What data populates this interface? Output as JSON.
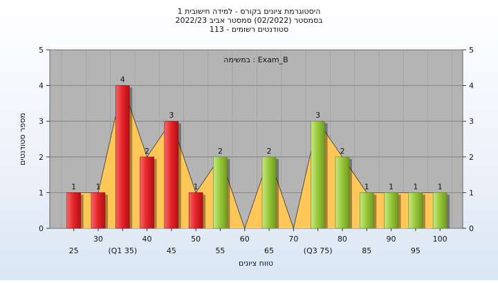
{
  "chart_data": {
    "type": "bar",
    "title_lines": [
      "היסטוגרמת ציונים בקורס - למידה חישובית 1",
      "בסמסטר  (02/2022)  סמסטר אביב 2022/23",
      "סטודנטים רשומים - 113"
    ],
    "annotation": "במשימה : Exam_B",
    "xlabel": "טווח ציונים",
    "ylabel": "מספר סטודנטים",
    "ylim": [
      0,
      5
    ],
    "yticks": [
      0,
      1,
      2,
      3,
      4,
      5
    ],
    "grid": true,
    "bins": [
      25,
      30,
      35,
      40,
      45,
      50,
      55,
      60,
      65,
      70,
      75,
      80,
      85,
      90,
      95,
      100
    ],
    "values": [
      1,
      1,
      4,
      2,
      3,
      1,
      2,
      0,
      2,
      0,
      3,
      2,
      1,
      1,
      1,
      1
    ],
    "x_tick_labels": [
      "25",
      "30",
      "(Q1 35)",
      "40",
      "45",
      "50",
      "55",
      "60",
      "65",
      "70",
      "(Q3 75)",
      "80",
      "85",
      "90",
      "95",
      "100"
    ],
    "bar_colors": [
      "red",
      "red",
      "red",
      "red",
      "red",
      "red",
      "green",
      "green",
      "green",
      "green",
      "green",
      "green",
      "green",
      "green",
      "green",
      "green"
    ],
    "colors": {
      "red_bar": "#e8262b",
      "green_bar": "#9bcb3c",
      "plot_bg": "#b4b4b4",
      "area_fill": "#ffc658"
    }
  }
}
